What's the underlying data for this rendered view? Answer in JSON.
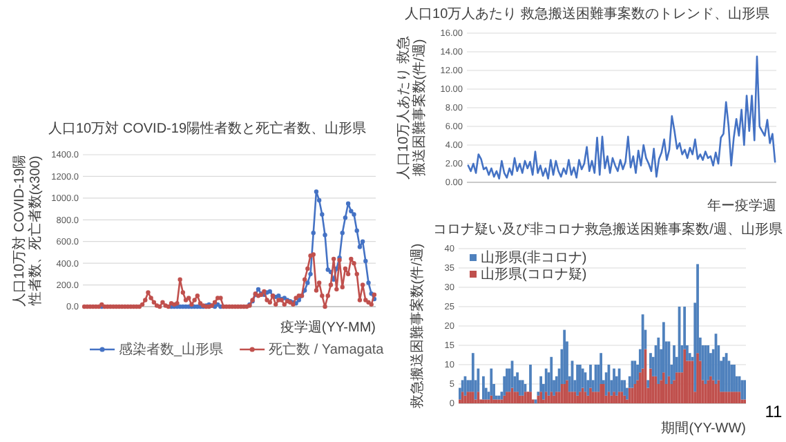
{
  "chart_data": [
    {
      "type": "line",
      "title": "人口10万対 COVID-19陽性者数と死亡者数、山形県",
      "ylabel": "人口10万対 COVID-19陽性者数、死亡者数(x300)",
      "xlabel": "疫学週(YY-MM)",
      "categories": [
        null,
        null,
        null,
        null,
        null,
        null,
        null,
        null,
        null,
        null,
        null,
        null,
        null,
        null,
        null,
        null,
        null,
        null,
        null,
        null,
        null,
        null,
        null,
        null,
        null,
        null,
        null,
        null,
        null,
        null,
        null,
        null,
        null,
        null,
        null,
        null,
        null,
        null,
        null,
        null,
        null,
        null,
        null,
        null,
        null,
        null,
        null,
        null,
        null,
        null,
        null,
        null,
        null,
        null,
        null,
        null,
        null,
        null,
        null,
        null,
        null,
        null,
        null,
        null,
        null,
        null,
        null,
        null,
        null,
        null,
        null,
        null,
        null,
        null,
        null,
        null,
        null,
        null,
        null,
        null,
        null,
        null,
        null,
        null,
        null,
        null,
        null,
        null,
        null,
        null,
        null,
        null,
        null,
        null,
        null,
        null,
        null,
        null,
        null,
        null,
        null
      ],
      "ylim": [
        0,
        1400
      ],
      "yticks": [
        {
          "value": 0,
          "label": "0.0"
        },
        {
          "value": 200,
          "label": "200.0"
        },
        {
          "value": 400,
          "label": "400.0"
        },
        {
          "value": 600,
          "label": "600.0"
        },
        {
          "value": 800,
          "label": "800.0"
        },
        {
          "value": 1000,
          "label": "1000.0"
        },
        {
          "value": 1200,
          "label": "1200.0"
        },
        {
          "value": 1400,
          "label": "1400.0"
        }
      ],
      "grid": "y",
      "legend": "bottom",
      "marker": "circle",
      "series": [
        {
          "name": "感染者数_山形県",
          "color": "#4472c4",
          "values": [
            null,
            null,
            null,
            null,
            null,
            null,
            0,
            null,
            null,
            null,
            null,
            null,
            null,
            null,
            null,
            null,
            null,
            null,
            null,
            null,
            null,
            null,
            null,
            null,
            null,
            null,
            null,
            null,
            null,
            null,
            0,
            0,
            0,
            0,
            0,
            0,
            0,
            0,
            0,
            0,
            0,
            0,
            10,
            20,
            10,
            0,
            20,
            0,
            null,
            null,
            null,
            null,
            null,
            null,
            null,
            null,
            null,
            20,
            50,
            110,
            160,
            120,
            110,
            130,
            140,
            100,
            90,
            100,
            70,
            80,
            60,
            50,
            40,
            30,
            60,
            100,
            150,
            220,
            300,
            680,
            1060,
            980,
            850,
            660,
            340,
            320,
            250,
            350,
            450,
            680,
            820,
            950,
            880,
            850,
            700,
            550,
            600,
            420,
            220,
            120,
            70
          ]
        },
        {
          "name": "死亡数 / Yamagata",
          "color": "#c0504d",
          "values": [
            0,
            0,
            0,
            0,
            0,
            0,
            20,
            0,
            0,
            0,
            0,
            0,
            0,
            0,
            0,
            0,
            0,
            0,
            0,
            0,
            20,
            60,
            130,
            80,
            40,
            10,
            0,
            40,
            10,
            0,
            30,
            20,
            30,
            250,
            130,
            60,
            80,
            20,
            60,
            100,
            30,
            10,
            0,
            0,
            10,
            40,
            80,
            80,
            0,
            0,
            0,
            0,
            0,
            0,
            0,
            0,
            0,
            10,
            60,
            120,
            100,
            110,
            140,
            60,
            40,
            100,
            20,
            60,
            60,
            20,
            50,
            40,
            20,
            80,
            100,
            100,
            250,
            350,
            470,
            480,
            150,
            220,
            100,
            0,
            100,
            200,
            440,
            160,
            430,
            180,
            350,
            300,
            440,
            400,
            300,
            60,
            200,
            60,
            40,
            20,
            110
          ]
        }
      ]
    },
    {
      "type": "line",
      "title": "人口10万人あたり 救急搬送困難事案数のトレンド、山形県",
      "ylabel": "人口10万人あたり 救急搬送困難事案数(件/週)",
      "xlabel": "年ー疫学週",
      "categories": [
        null,
        null,
        null,
        null,
        null,
        null,
        null,
        null,
        null,
        null,
        null,
        null,
        null,
        null,
        null,
        null,
        null,
        null,
        null,
        null,
        null,
        null,
        null,
        null,
        null,
        null,
        null,
        null,
        null,
        null,
        null,
        null,
        null,
        null,
        null,
        null,
        null,
        null,
        null,
        null,
        null,
        null,
        null,
        null,
        null,
        null,
        null,
        null,
        null,
        null,
        null,
        null,
        null,
        null,
        null,
        null,
        null,
        null,
        null,
        null,
        null,
        null,
        null,
        null,
        null,
        null,
        null,
        null,
        null,
        null,
        null,
        null,
        null,
        null,
        null,
        null,
        null,
        null,
        null,
        null,
        null,
        null,
        null,
        null,
        null,
        null,
        null,
        null,
        null,
        null,
        null,
        null,
        null,
        null,
        null,
        null,
        null,
        null,
        null,
        null,
        null,
        null,
        null,
        null,
        null,
        null,
        null,
        null,
        null,
        null,
        null,
        null,
        null,
        null,
        null,
        null,
        null,
        null,
        null,
        null
      ],
      "ylim": [
        0,
        16
      ],
      "yticks": [
        {
          "value": 0,
          "label": "0.00"
        },
        {
          "value": 2,
          "label": "2.00"
        },
        {
          "value": 4,
          "label": "4.00"
        },
        {
          "value": 6,
          "label": "6.00"
        },
        {
          "value": 8,
          "label": "8.00"
        },
        {
          "value": 10,
          "label": "10.00"
        },
        {
          "value": 12,
          "label": "12.00"
        },
        {
          "value": 14,
          "label": "14.00"
        },
        {
          "value": 16,
          "label": "16.00"
        }
      ],
      "grid": "y",
      "series": [
        {
          "color": "#4472c4",
          "values": [
            1.8,
            1.2,
            2.0,
            1.0,
            3.0,
            2.5,
            1.4,
            1.6,
            0.8,
            1.5,
            0.6,
            1.2,
            0.4,
            2.3,
            1.0,
            0.5,
            1.5,
            0.8,
            2.6,
            1.2,
            2.0,
            1.0,
            2.3,
            1.5,
            2.2,
            0.8,
            3.3,
            1.0,
            1.8,
            0.7,
            1.5,
            0.4,
            2.4,
            0.8,
            2.3,
            1.2,
            0.6,
            1.5,
            0.9,
            2.4,
            0.8,
            1.6,
            0.5,
            2.4,
            1.4,
            2.0,
            3.8,
            1.2,
            2.3,
            1.0,
            4.8,
            0.8,
            4.9,
            1.5,
            2.8,
            1.0,
            2.6,
            1.8,
            1.2,
            2.4,
            1.4,
            2.2,
            4.9,
            1.6,
            2.8,
            1.0,
            3.4,
            1.8,
            4.0,
            2.6,
            2.0,
            1.2,
            3.6,
            0.6,
            2.5,
            3.2,
            4.6,
            2.4,
            3.5,
            7.1,
            5.5,
            3.6,
            4.2,
            3.0,
            3.5,
            2.6,
            3.7,
            3.0,
            4.6,
            2.5,
            3.0,
            2.4,
            3.3,
            2.6,
            2.8,
            1.8,
            3.2,
            2.0,
            4.8,
            5.2,
            8.6,
            6.0,
            1.8,
            4.8,
            6.8,
            5.0,
            7.8,
            4.0,
            9.3,
            5.5,
            9.3,
            4.5,
            13.5,
            6.0,
            5.5,
            5.0,
            6.7,
            4.2,
            5.2,
            2.2
          ]
        }
      ]
    },
    {
      "type": "bar",
      "stacked": true,
      "title": "コロナ疑い及び非コロナ救急搬送困難事案数/週、山形県",
      "ylabel": "救急搬送困難事案数(件/週)",
      "xlabel": "期間(YY-WW)",
      "categories": [
        null,
        null,
        null,
        null,
        null,
        null,
        null,
        null,
        null,
        null,
        null,
        null,
        null,
        null,
        null,
        null,
        null,
        null,
        null,
        null,
        null,
        null,
        null,
        null,
        null,
        null,
        null,
        null,
        null,
        null,
        null,
        null,
        null,
        null,
        null,
        null,
        null,
        null,
        null,
        null,
        null,
        null,
        null,
        null,
        null,
        null,
        null,
        null,
        null,
        null,
        null,
        null,
        null,
        null,
        null,
        null,
        null,
        null,
        null,
        null,
        null,
        null,
        null,
        null,
        null,
        null,
        null,
        null,
        null,
        null,
        null,
        null,
        null,
        null,
        null,
        null,
        null,
        null,
        null,
        null,
        null,
        null,
        null,
        null,
        null,
        null,
        null,
        null,
        null,
        null,
        null,
        null,
        null,
        null,
        null,
        null,
        null,
        null,
        null,
        null,
        null,
        null,
        null,
        null,
        null,
        null,
        null,
        null,
        null,
        null
      ],
      "ylim": [
        0,
        40
      ],
      "yticks": [
        0,
        5,
        10,
        15,
        20,
        25,
        30,
        35,
        40
      ],
      "grid": "y",
      "legend": "top left",
      "series": [
        {
          "name": "山形県(コロナ疑)",
          "color": "#c0504d",
          "values": [
            1,
            3,
            2,
            3,
            3,
            3,
            1,
            3,
            1,
            1,
            1,
            1,
            2,
            1,
            1,
            1,
            1,
            2,
            3,
            3,
            4,
            3,
            3,
            2,
            2,
            3,
            3,
            3,
            1,
            0,
            2,
            3,
            1,
            3,
            2,
            3,
            2,
            3,
            3,
            5,
            5,
            6,
            3,
            3,
            3,
            2,
            3,
            4,
            3,
            2,
            4,
            3,
            3,
            3,
            5,
            5,
            2,
            3,
            2,
            3,
            2,
            3,
            3,
            2,
            1,
            4,
            4,
            5,
            6,
            8,
            9,
            14,
            4,
            9,
            7,
            7,
            5,
            6,
            8,
            5,
            7,
            5,
            6,
            8,
            8,
            8,
            14,
            11,
            11,
            11,
            3,
            13,
            11,
            6,
            5,
            6,
            7,
            6,
            5,
            6,
            3,
            3,
            3,
            3,
            3,
            3,
            3,
            3,
            1,
            1
          ]
        },
        {
          "name": "山形県(非コロナ)",
          "color": "#4f81bd",
          "values": [
            3,
            3,
            5,
            3,
            3,
            10,
            5,
            6,
            0,
            6,
            3,
            2,
            7,
            4,
            1,
            1,
            2,
            5,
            6,
            6,
            7,
            4,
            5,
            4,
            4,
            2,
            0,
            7,
            0,
            1,
            1,
            4,
            4,
            6,
            6,
            9,
            4,
            4,
            6,
            9,
            14,
            10,
            4,
            8,
            3,
            8,
            7,
            5,
            5,
            4,
            6,
            3,
            7,
            7,
            8,
            1,
            6,
            7,
            4,
            6,
            5,
            6,
            3,
            4,
            3,
            3,
            7,
            6,
            4,
            6,
            14,
            5,
            2,
            4,
            5,
            8,
            12,
            8,
            13,
            11,
            9,
            5,
            9,
            4,
            17,
            7,
            11,
            4,
            2,
            1,
            23,
            23,
            6,
            9,
            10,
            9,
            6,
            8,
            13,
            9,
            8,
            9,
            10,
            8,
            7,
            7,
            4,
            4,
            5,
            5
          ]
        }
      ]
    },
    {
      "type": "other",
      "annotations": [
        "11"
      ]
    }
  ]
}
